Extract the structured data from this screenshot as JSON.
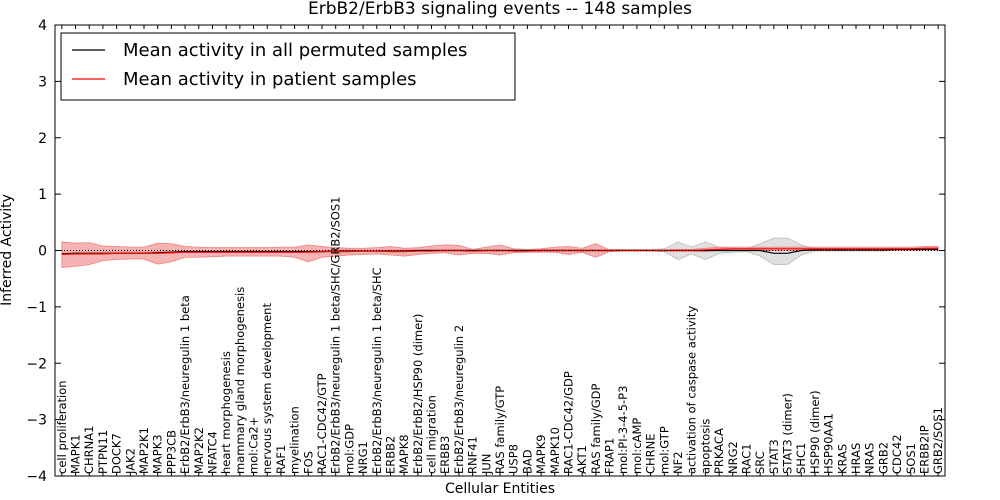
{
  "chart_data": {
    "type": "line",
    "title": "ErbB2/ErbB3 signaling events -- 148 samples",
    "xlabel": "Cellular Entities",
    "ylabel": "Inferred Activity",
    "ylim": [
      -4,
      4
    ],
    "yticks": [
      -4,
      -3,
      -2,
      -1,
      0,
      1,
      2,
      3,
      4
    ],
    "ytick_labels": [
      "−4",
      "−3",
      "−2",
      "−1",
      "0",
      "1",
      "2",
      "3",
      "4"
    ],
    "legend_position": "top-left",
    "categories": [
      "cell proliferation",
      "MAPK1",
      "CHRNA1",
      "PTPN11",
      "DOCK7",
      "JAK2",
      "MAP2K1",
      "MAPK3",
      "PPP3CB",
      "ErbB2/ErbB3/neuregulin 1 beta",
      "MAP2K2",
      "NFATC4",
      "heart morphogenesis",
      "mammary gland morphogenesis",
      "mol:Ca2+",
      "nervous system development",
      "RAF1",
      "myelination",
      "FOS",
      "RAC1-CDC42/GTP",
      "ErbB2/ErbB3/neuregulin 1 beta/SHC/GRB2/SOS1",
      "mol:GDP",
      "NRG1",
      "ErbB2/ErbB3/neuregulin 1 beta/SHC",
      "ERBB2",
      "MAPK8",
      "ErbB2/ErbB2/HSP90 (dimer)",
      "cell migration",
      "ERBB3",
      "ErbB2/ErbB3/neuregulin 2",
      "RNF41",
      "JUN",
      "RAS family/GTP",
      "USP8",
      "BAD",
      "MAPK9",
      "MAPK10",
      "RAC1-CDC42/GDP",
      "AKT1",
      "RAS family/GDP",
      "FRAP1",
      "mol:PI-3-4-5-P3",
      "mol:cAMP",
      "CHRNE",
      "mol:GTP",
      "NF2",
      "activation of caspase activity",
      "apoptosis",
      "PRKACA",
      "NRG2",
      "RAC1",
      "SRC",
      "STAT3",
      "STAT3 (dimer)",
      "SHC1",
      "HSP90 (dimer)",
      "HSP90AA1",
      "KRAS",
      "HRAS",
      "NRAS",
      "GRB2",
      "CDC42",
      "SOS1",
      "ERBB2IP",
      "GRB2/SOS1"
    ],
    "series": [
      {
        "name": "Mean activity in all permuted samples",
        "color": "#000000",
        "values": [
          -0.06,
          -0.05,
          -0.05,
          -0.05,
          -0.05,
          -0.05,
          -0.05,
          -0.04,
          -0.03,
          -0.02,
          -0.02,
          -0.02,
          -0.02,
          -0.02,
          -0.02,
          -0.02,
          -0.02,
          -0.02,
          -0.02,
          -0.02,
          -0.01,
          -0.01,
          -0.01,
          -0.01,
          -0.01,
          -0.01,
          0.0,
          0.0,
          0.0,
          0.0,
          0.0,
          0.0,
          0.0,
          0.0,
          0.0,
          0.0,
          0.0,
          0.0,
          0.0,
          0.0,
          0.0,
          0.0,
          0.0,
          0.0,
          0.0,
          0.0,
          0.0,
          0.0,
          0.0,
          0.0,
          0.0,
          0.0,
          -0.05,
          -0.05,
          0.0,
          0.01,
          0.01,
          0.01,
          0.01,
          0.01,
          0.01,
          0.02,
          0.02,
          0.02,
          0.02
        ],
        "band": {
          "color": "#bbbbbb",
          "lower": [
            -0.07,
            -0.06,
            -0.06,
            -0.06,
            -0.06,
            -0.06,
            -0.06,
            -0.05,
            -0.04,
            -0.03,
            -0.03,
            -0.03,
            -0.03,
            -0.03,
            -0.03,
            -0.03,
            -0.03,
            -0.03,
            -0.03,
            -0.03,
            -0.02,
            -0.02,
            -0.02,
            -0.02,
            -0.02,
            -0.02,
            -0.01,
            -0.01,
            -0.01,
            -0.01,
            -0.01,
            -0.01,
            -0.01,
            -0.01,
            -0.01,
            -0.01,
            -0.01,
            -0.01,
            -0.01,
            -0.01,
            -0.01,
            -0.01,
            -0.01,
            -0.01,
            -0.02,
            -0.16,
            -0.06,
            -0.16,
            -0.05,
            -0.03,
            -0.02,
            -0.1,
            -0.25,
            -0.25,
            -0.08,
            -0.01,
            -0.01,
            -0.01,
            -0.01,
            -0.01,
            -0.01,
            0.0,
            0.0,
            0.0,
            0.0
          ],
          "upper": [
            -0.04,
            -0.03,
            -0.03,
            -0.03,
            -0.03,
            -0.03,
            -0.03,
            -0.02,
            -0.01,
            0.0,
            0.0,
            0.0,
            0.0,
            0.0,
            0.0,
            0.0,
            0.0,
            0.0,
            0.0,
            0.0,
            0.01,
            0.01,
            0.01,
            0.01,
            0.01,
            0.01,
            0.02,
            0.02,
            0.02,
            0.02,
            0.02,
            0.02,
            0.02,
            0.02,
            0.02,
            0.02,
            0.02,
            0.02,
            0.02,
            0.02,
            0.02,
            0.02,
            0.02,
            0.02,
            0.03,
            0.15,
            0.06,
            0.15,
            0.06,
            0.04,
            0.03,
            0.12,
            0.22,
            0.22,
            0.1,
            0.03,
            0.03,
            0.03,
            0.03,
            0.03,
            0.03,
            0.04,
            0.04,
            0.04,
            0.04
          ]
        }
      },
      {
        "name": "Mean activity in patient samples",
        "color": "#ff0000",
        "values": [
          -0.07,
          -0.06,
          -0.06,
          -0.06,
          -0.05,
          -0.05,
          -0.05,
          -0.05,
          -0.04,
          -0.03,
          -0.03,
          -0.03,
          -0.03,
          -0.03,
          -0.03,
          -0.03,
          -0.03,
          -0.03,
          -0.03,
          -0.02,
          -0.02,
          -0.02,
          -0.01,
          -0.01,
          -0.02,
          -0.02,
          -0.01,
          -0.01,
          0.0,
          0.0,
          -0.01,
          0.0,
          0.0,
          -0.01,
          -0.01,
          0.0,
          0.0,
          0.0,
          0.0,
          0.0,
          0.0,
          0.0,
          0.0,
          0.0,
          0.0,
          0.0,
          0.0,
          0.01,
          0.02,
          0.03,
          0.03,
          0.03,
          0.03,
          0.03,
          0.03,
          0.03,
          0.03,
          0.03,
          0.03,
          0.03,
          0.03,
          0.03,
          0.03,
          0.04,
          0.04
        ],
        "band": {
          "color": "#f08080",
          "lower": [
            -0.3,
            -0.28,
            -0.25,
            -0.18,
            -0.16,
            -0.15,
            -0.15,
            -0.24,
            -0.2,
            -0.12,
            -0.12,
            -0.11,
            -0.1,
            -0.1,
            -0.1,
            -0.1,
            -0.1,
            -0.12,
            -0.2,
            -0.12,
            -0.1,
            -0.08,
            -0.07,
            -0.06,
            -0.08,
            -0.1,
            -0.07,
            -0.05,
            -0.04,
            -0.08,
            -0.05,
            -0.05,
            -0.08,
            -0.04,
            -0.03,
            -0.03,
            -0.03,
            -0.07,
            -0.03,
            -0.12,
            -0.02,
            -0.01,
            -0.01,
            -0.01,
            -0.01,
            -0.01,
            -0.01,
            -0.02,
            0.0,
            0.0,
            0.0,
            0.0,
            0.0,
            0.0,
            0.0,
            0.0,
            0.0,
            0.0,
            0.0,
            0.0,
            0.0,
            0.0,
            0.0,
            0.01,
            0.01
          ],
          "upper": [
            0.15,
            0.13,
            0.14,
            0.08,
            0.07,
            0.06,
            0.06,
            0.13,
            0.12,
            0.07,
            0.06,
            0.05,
            0.05,
            0.05,
            0.05,
            0.05,
            0.06,
            0.06,
            0.1,
            0.07,
            0.05,
            0.04,
            0.04,
            0.05,
            0.07,
            0.04,
            0.05,
            0.08,
            0.1,
            0.09,
            0.02,
            0.06,
            0.1,
            0.03,
            0.02,
            0.03,
            0.06,
            0.07,
            0.04,
            0.12,
            0.01,
            0.01,
            0.01,
            0.01,
            0.01,
            0.02,
            0.02,
            0.04,
            0.06,
            0.06,
            0.06,
            0.06,
            0.06,
            0.06,
            0.06,
            0.06,
            0.06,
            0.06,
            0.06,
            0.06,
            0.06,
            0.06,
            0.06,
            0.07,
            0.07
          ]
        }
      }
    ]
  }
}
